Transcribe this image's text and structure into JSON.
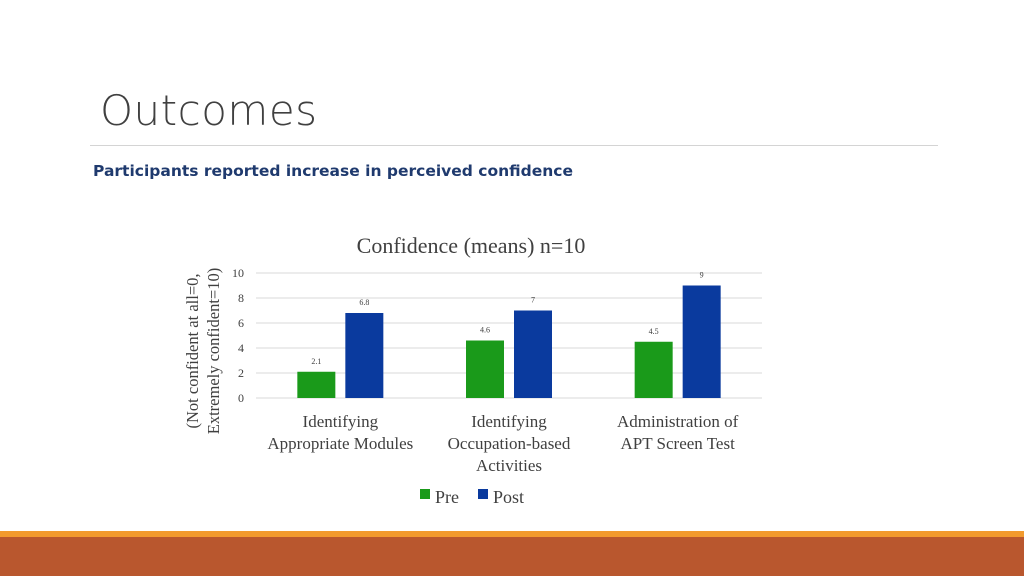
{
  "slide": {
    "title": "Outcomes",
    "subtitle": "Participants reported increase in perceived confidence"
  },
  "colors": {
    "pre": "#1a9a1a",
    "post": "#0a3a9e",
    "footer_accent": "#f29a2e",
    "footer_bar": "#b9572e"
  },
  "chart_data": {
    "type": "bar",
    "title": "Confidence (means) n=10",
    "ylabel_lines": [
      "(Not confident at all=0,",
      "Extremely confident=10)"
    ],
    "ylim": [
      0,
      10
    ],
    "yticks": [
      0,
      2,
      4,
      6,
      8,
      10
    ],
    "grid": true,
    "legend": "bottom",
    "categories": [
      [
        "Identifying",
        "Appropriate Modules"
      ],
      [
        "Identifying",
        "Occupation-based",
        "Activities"
      ],
      [
        "Administration of",
        "APT Screen Test"
      ]
    ],
    "series": [
      {
        "name": "Pre",
        "values": [
          2.1,
          4.6,
          4.5
        ]
      },
      {
        "name": "Post",
        "values": [
          6.8,
          7,
          9
        ]
      }
    ]
  }
}
